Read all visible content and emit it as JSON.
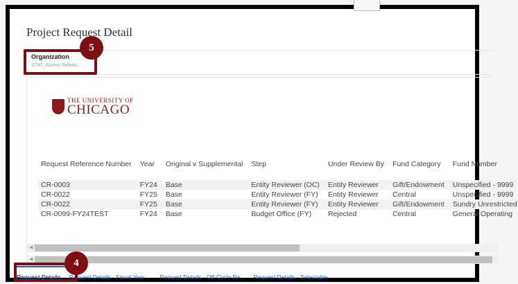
{
  "page": {
    "title": "Project Request Detail"
  },
  "filter": {
    "label": "Organization",
    "value": "STAT_Alumni Relatio..."
  },
  "callouts": {
    "org": "5",
    "tabs": "4"
  },
  "logo": {
    "line1": "THE UNIVERSITY OF",
    "line2": "CHICAGO"
  },
  "table": {
    "headers": [
      "Request Reference Number",
      "Year",
      "Original v Supplemental",
      "Step",
      "Under Review By",
      "Fund Category",
      "Fund Number"
    ],
    "rows": [
      [
        "CR-0003",
        "FY24",
        "Base",
        "Entity Reviewer (OC)",
        "Entity Reviewer",
        "Gift/Endowment",
        "Unspecified - 9999"
      ],
      [
        "CR-0022",
        "FY25",
        "Base",
        "Entity Reviewer (FY)",
        "Entity Reviewer",
        "Central",
        "Unspecified - 9999"
      ],
      [
        "CR-0022",
        "FY25",
        "Base",
        "Entity Reviewer (FY)",
        "Entity Reviewer",
        "Gift/Endowment",
        "Sundry Unrestricted"
      ],
      [
        "CR-0099-FY24TEST",
        "FY24",
        "Base",
        "Budget Office (FY)",
        "Rejected",
        "Central",
        "General Operating"
      ]
    ]
  },
  "tabs": [
    {
      "label": "Request Details",
      "active": true
    },
    {
      "label": "Request Details - Fiscal Year ..."
    },
    {
      "label": "Request Details - Off-Cycle Re..."
    },
    {
      "label": "Request Details - Selectable"
    }
  ],
  "colors": {
    "callout": "#7d0f12",
    "brand": "#8a1b1b",
    "link": "#2a62a8"
  }
}
